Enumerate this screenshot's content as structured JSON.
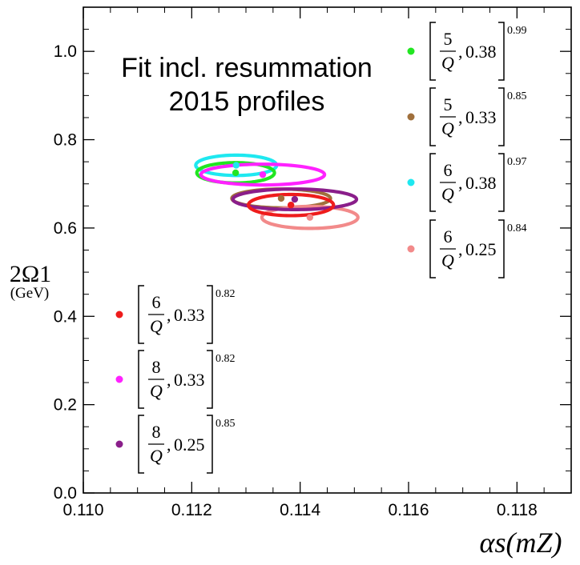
{
  "chart_data": {
    "type": "scatter",
    "title": "Fit incl. resummation",
    "subtitle": "2015 profiles",
    "xlabel": "αs(mZ)",
    "ylabel": "2Ω1",
    "ylabel_unit": "(GeV)",
    "xlim": [
      0.11,
      0.119
    ],
    "ylim": [
      0.0,
      1.1
    ],
    "x_ticks": [
      0.11,
      0.112,
      0.114,
      0.116,
      0.118
    ],
    "x_tick_labels": [
      "0.110",
      "0.112",
      "0.114",
      "0.116",
      "0.118"
    ],
    "y_ticks": [
      0.0,
      0.2,
      0.4,
      0.6,
      0.8,
      1.0
    ],
    "y_tick_labels": [
      "0.0",
      "0.2",
      "0.4",
      "0.6",
      "0.8",
      "1.0"
    ],
    "series": [
      {
        "name": "green",
        "color": "#22e622",
        "frac": "5",
        "denom": "Q",
        "value": "0.38",
        "exponent": "0.99",
        "center": [
          0.11281,
          0.725
        ],
        "ellipse": {
          "a": 0.000716,
          "b": 0.023,
          "slope": -0.08
        }
      },
      {
        "name": "brown",
        "color": "#a0703c",
        "frac": "5",
        "denom": "Q",
        "value": "0.33",
        "exponent": "0.85",
        "center": [
          0.11365,
          0.667
        ],
        "ellipse": {
          "a": 0.00091,
          "b": 0.0213,
          "slope": -0.096
        }
      },
      {
        "name": "cyan",
        "color": "#1ee8f0",
        "frac": "6",
        "denom": "Q",
        "value": "0.38",
        "exponent": "0.97",
        "center": [
          0.11282,
          0.742
        ],
        "ellipse": {
          "a": 0.000746,
          "b": 0.023,
          "slope": -0.086
        }
      },
      {
        "name": "pink",
        "color": "#f28a8a",
        "frac": "6",
        "denom": "Q",
        "value": "0.25",
        "exponent": "0.84",
        "center": [
          0.11418,
          0.624
        ],
        "ellipse": {
          "a": 0.000886,
          "b": 0.0249,
          "slope": -0.085
        }
      },
      {
        "name": "red",
        "color": "#ee1c1c",
        "frac": "6",
        "denom": "Q",
        "value": "0.33",
        "exponent": "0.82",
        "center": [
          0.11383,
          0.652
        ],
        "ellipse": {
          "a": 0.000785,
          "b": 0.024,
          "slope": -0.088
        }
      },
      {
        "name": "magenta",
        "color": "#ff22ff",
        "frac": "8",
        "denom": "Q",
        "value": "0.33",
        "exponent": "0.82",
        "center": [
          0.11331,
          0.721
        ],
        "ellipse": {
          "a": 0.00114,
          "b": 0.0235,
          "slope": -0.084
        }
      },
      {
        "name": "purple",
        "color": "#8a1e8a",
        "frac": "8",
        "denom": "Q",
        "value": "0.25",
        "exponent": "0.85",
        "center": [
          0.1139,
          0.665
        ],
        "ellipse": {
          "a": 0.00114,
          "b": 0.0233,
          "slope": -0.075
        }
      }
    ],
    "legend": [
      "green",
      "brown",
      "cyan",
      "pink",
      "red",
      "magenta",
      "purple"
    ]
  }
}
